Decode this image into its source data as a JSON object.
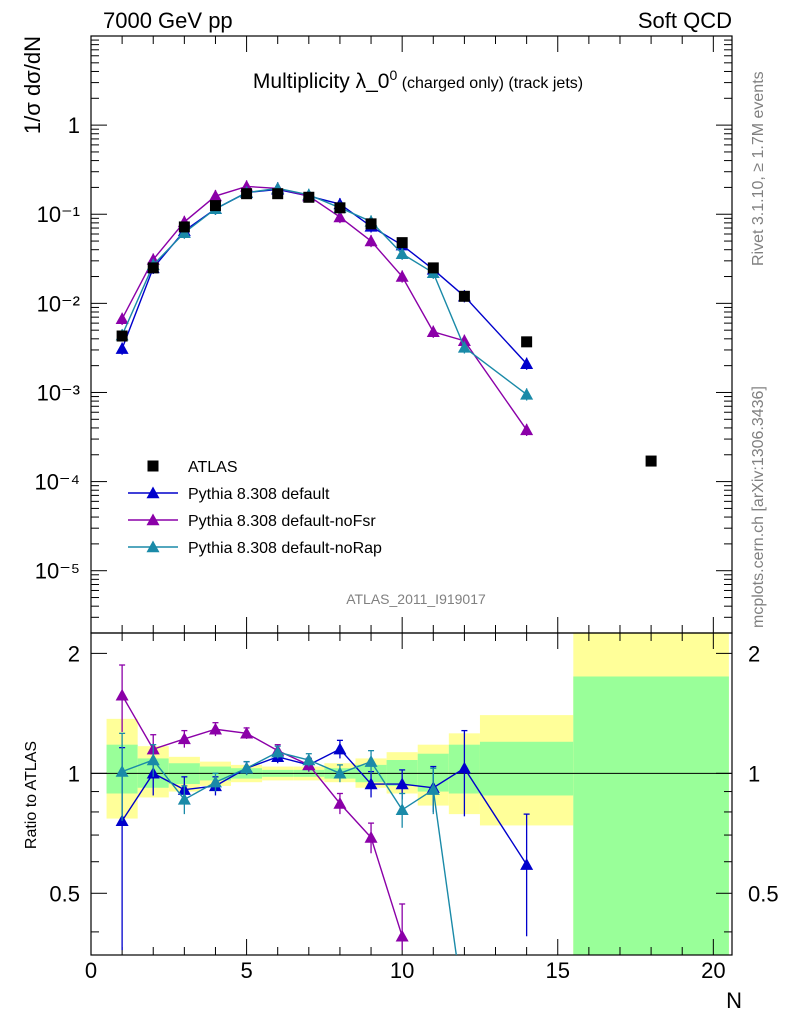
{
  "header": {
    "left": "7000 GeV pp",
    "right": "Soft QCD"
  },
  "side_text": {
    "rivet": "Rivet 3.1.10, ≥ 1.7M events",
    "mcplots": "mcplots.cern.ch [arXiv:1306.3436]"
  },
  "chart_data": {
    "type": "scatter",
    "title_main": "Multiplicity λ_0",
    "title_sup": "0",
    "title_sub": " (charged only) (track jets)",
    "analysis_id": "ATLAS_2011_I919017",
    "ylabel": "1/σ dσ/dN",
    "ratio_ylabel": "Ratio to ATLAS",
    "xlabel": "N",
    "xlim": [
      0,
      20.6
    ],
    "ylim": [
      2e-06,
      10
    ],
    "yscale": "log",
    "ratio_ylim": [
      0.35,
      2.25
    ],
    "x_ticks": [
      "0",
      "5",
      "10",
      "15",
      "20"
    ],
    "y_ticks": [
      "10⁻⁵",
      "10⁻⁴",
      "10⁻³",
      "10⁻²",
      "10⁻¹",
      "1"
    ],
    "ratio_ticks": [
      "0.5",
      "1",
      "2"
    ],
    "legend_position": "bottom-left",
    "series": [
      {
        "name": "ATLAS",
        "color": "#000000",
        "marker": "square",
        "x": [
          1,
          2,
          3,
          4,
          5,
          6,
          7,
          8,
          9,
          10,
          11,
          12,
          14,
          18
        ],
        "y": [
          0.0043,
          0.025,
          0.072,
          0.125,
          0.17,
          0.17,
          0.155,
          0.118,
          0.078,
          0.048,
          0.025,
          0.012,
          0.0037,
          0.00017
        ]
      },
      {
        "name": "Pythia 8.308 default",
        "color": "#0000cc",
        "marker": "triangle",
        "x": [
          1,
          2,
          3,
          4,
          5,
          6,
          7,
          8,
          9,
          10,
          11,
          12,
          14
        ],
        "y": [
          0.0031,
          0.025,
          0.065,
          0.115,
          0.175,
          0.19,
          0.16,
          0.13,
          0.073,
          0.045,
          0.024,
          0.012,
          0.0021
        ],
        "ratio": [
          0.76,
          1.0,
          0.91,
          0.93,
          1.03,
          1.1,
          1.05,
          1.15,
          0.94,
          0.94,
          0.92,
          1.03,
          0.59
        ],
        "ratio_err": [
          0.4,
          0.12,
          0.07,
          0.05,
          0.04,
          0.04,
          0.04,
          0.06,
          0.07,
          0.08,
          0.12,
          0.25,
          0.2
        ]
      },
      {
        "name": "Pythia 8.308 default-noFsr",
        "color": "#8b00a8",
        "marker": "triangle",
        "x": [
          1,
          2,
          3,
          4,
          5,
          6,
          7,
          8,
          9,
          10,
          11,
          12,
          14
        ],
        "y": [
          0.0067,
          0.031,
          0.082,
          0.16,
          0.205,
          0.195,
          0.16,
          0.093,
          0.05,
          0.02,
          0.0048,
          0.0038,
          0.00038
        ],
        "ratio": [
          1.57,
          1.15,
          1.22,
          1.29,
          1.26,
          1.14,
          1.05,
          0.84,
          0.69,
          0.39
        ],
        "ratio_err": [
          0.3,
          0.1,
          0.06,
          0.05,
          0.04,
          0.04,
          0.04,
          0.05,
          0.06,
          0.08
        ]
      },
      {
        "name": "Pythia 8.308 default-noRap",
        "color": "#1a8aa8",
        "marker": "triangle",
        "x": [
          1,
          2,
          3,
          4,
          5,
          6,
          7,
          8,
          9,
          10,
          11,
          12,
          14
        ],
        "y": [
          0.0044,
          0.027,
          0.062,
          0.115,
          0.175,
          0.195,
          0.165,
          0.118,
          0.083,
          0.036,
          0.022,
          0.0032,
          0.00095
        ],
        "ratio": [
          1.01,
          1.08,
          0.86,
          0.95,
          1.03,
          1.13,
          1.08,
          1.0,
          1.07,
          0.81,
          0.91,
          0.25
        ],
        "ratio_err": [
          0.25,
          0.1,
          0.07,
          0.05,
          0.04,
          0.04,
          0.04,
          0.05,
          0.07,
          0.08,
          0.12,
          0.2
        ]
      }
    ],
    "ratio_bands": {
      "edges": [
        0.5,
        1.5,
        2.5,
        3.5,
        4.5,
        5.5,
        6.5,
        7.5,
        8.5,
        9.5,
        10.5,
        11.5,
        12.5,
        15.5,
        20.5
      ],
      "yellow_lo": [
        0.77,
        0.87,
        0.9,
        0.93,
        0.95,
        0.96,
        0.96,
        0.95,
        0.92,
        0.89,
        0.83,
        0.79,
        0.74,
        0.3
      ],
      "yellow_hi": [
        1.37,
        1.17,
        1.1,
        1.07,
        1.05,
        1.04,
        1.04,
        1.06,
        1.09,
        1.13,
        1.18,
        1.26,
        1.4,
        3.0
      ],
      "green_lo": [
        0.89,
        0.92,
        0.94,
        0.96,
        0.97,
        0.98,
        0.98,
        0.97,
        0.95,
        0.93,
        0.9,
        0.89,
        0.88,
        0.3
      ],
      "green_hi": [
        1.18,
        1.09,
        1.06,
        1.04,
        1.03,
        1.02,
        1.02,
        1.03,
        1.05,
        1.08,
        1.12,
        1.18,
        1.2,
        1.75
      ]
    }
  }
}
